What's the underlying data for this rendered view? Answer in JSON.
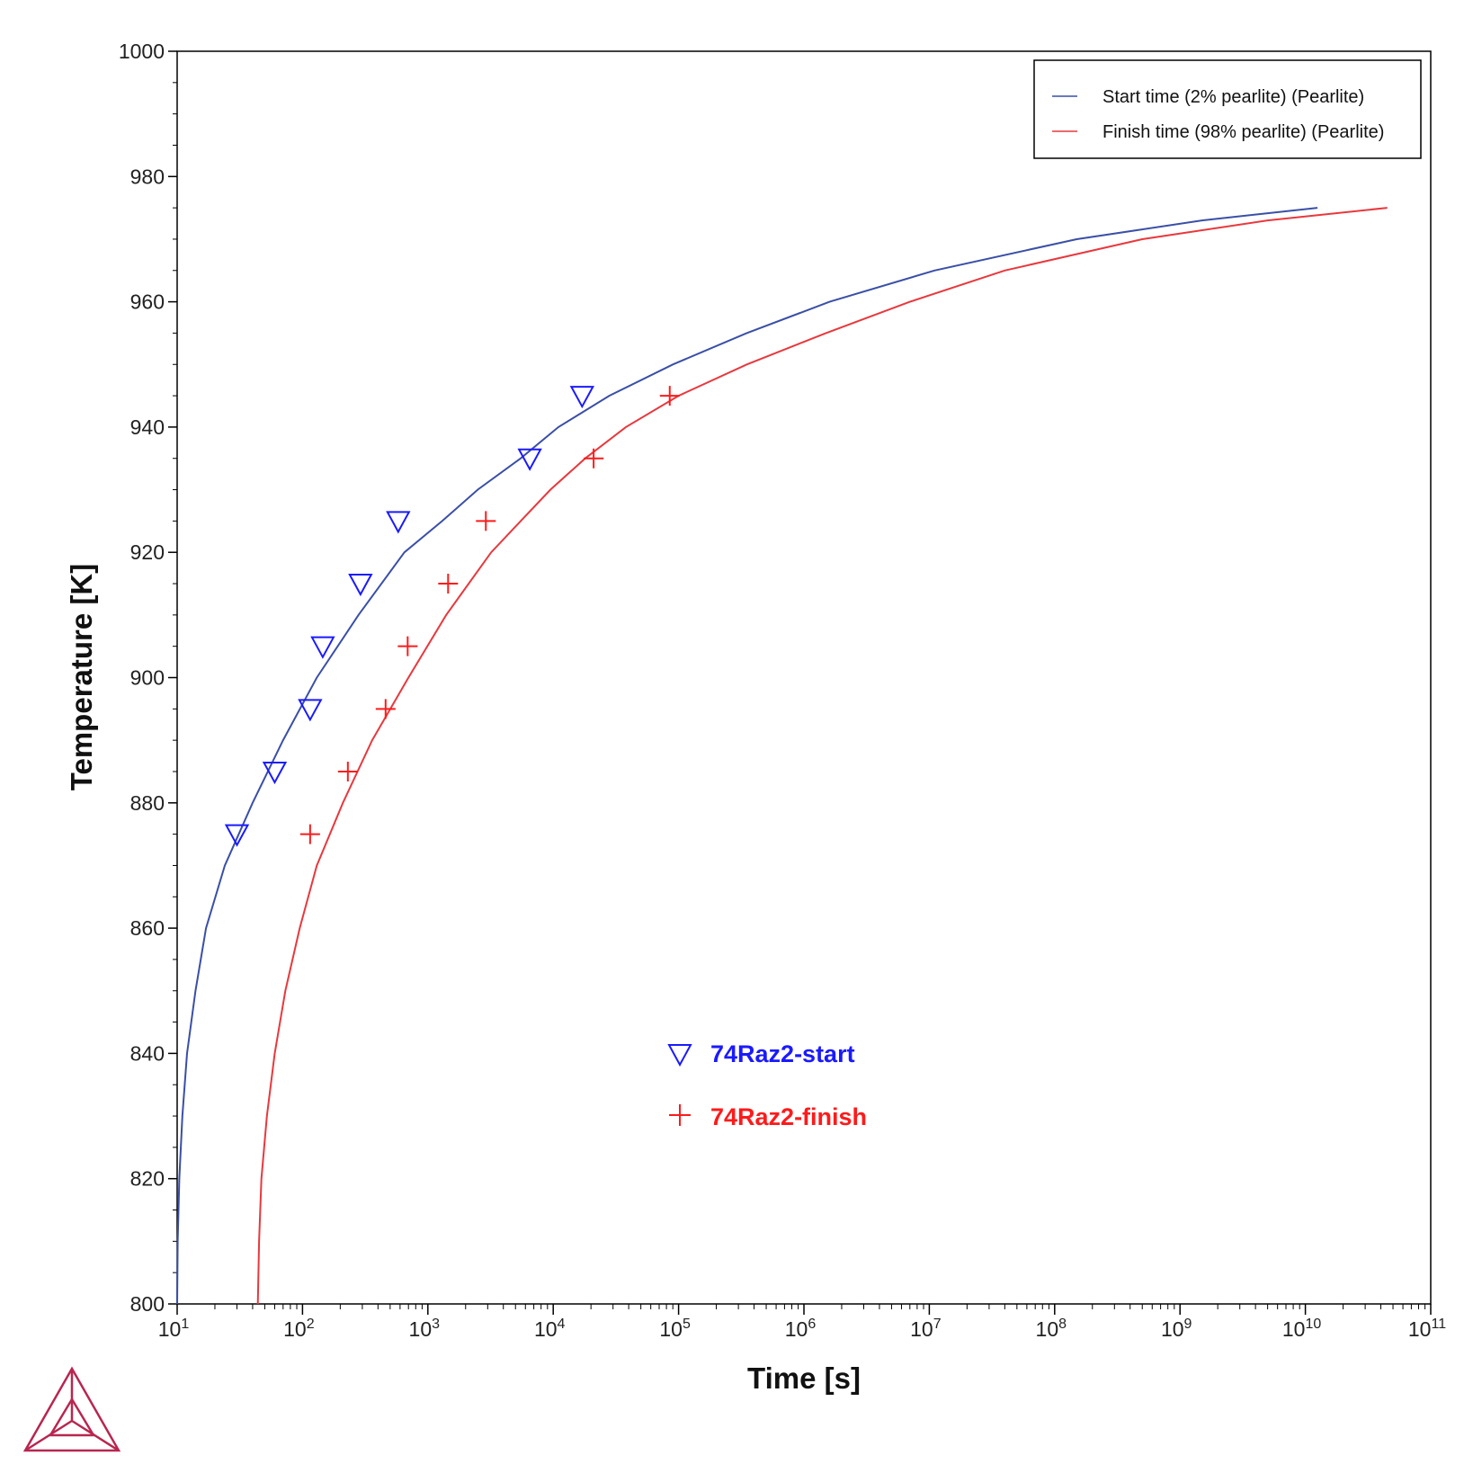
{
  "chart_data": {
    "type": "line",
    "xlabel": "Time [s]",
    "ylabel": "Temperature [K]",
    "x_scale": "log",
    "xlim": [
      10,
      100000000000
    ],
    "ylim": [
      800,
      1000
    ],
    "x_ticks": [
      {
        "value": 10,
        "base": "10",
        "exp": "1"
      },
      {
        "value": 100,
        "base": "10",
        "exp": "2"
      },
      {
        "value": 1000,
        "base": "10",
        "exp": "3"
      },
      {
        "value": 10000,
        "base": "10",
        "exp": "4"
      },
      {
        "value": 100000,
        "base": "10",
        "exp": "5"
      },
      {
        "value": 1000000,
        "base": "10",
        "exp": "6"
      },
      {
        "value": 10000000,
        "base": "10",
        "exp": "7"
      },
      {
        "value": 100000000,
        "base": "10",
        "exp": "8"
      },
      {
        "value": 1000000000,
        "base": "10",
        "exp": "9"
      },
      {
        "value": 10000000000,
        "base": "10",
        "exp": "10"
      },
      {
        "value": 100000000000,
        "base": "10",
        "exp": "11"
      }
    ],
    "y_ticks": [
      "800",
      "820",
      "840",
      "860",
      "880",
      "900",
      "920",
      "940",
      "960",
      "980",
      "1000"
    ],
    "grid": false,
    "legend_position": "top-right",
    "series": [
      {
        "name": "Start time (2% pearlite) (Pearlite)",
        "color": "#3a4fa6",
        "style": "line",
        "points": [
          [
            10.0,
            800
          ],
          [
            10.1,
            810
          ],
          [
            10.4,
            820
          ],
          [
            11,
            830
          ],
          [
            12,
            840
          ],
          [
            14,
            850
          ],
          [
            17,
            860
          ],
          [
            24,
            870
          ],
          [
            40,
            880
          ],
          [
            70,
            890
          ],
          [
            130,
            900
          ],
          [
            280,
            910
          ],
          [
            650,
            920
          ],
          [
            1300,
            925
          ],
          [
            2500,
            930
          ],
          [
            5500,
            935
          ],
          [
            11000,
            940
          ],
          [
            28000,
            945
          ],
          [
            90000,
            950
          ],
          [
            350000,
            955
          ],
          [
            1600000,
            960
          ],
          [
            11000000,
            965
          ],
          [
            150000000,
            970
          ],
          [
            1500000000,
            973
          ],
          [
            12500000000,
            975
          ]
        ]
      },
      {
        "name": "Finish time (98% pearlite) (Pearlite)",
        "color": "#e8383d",
        "style": "line",
        "points": [
          [
            44,
            800
          ],
          [
            45,
            810
          ],
          [
            47,
            820
          ],
          [
            52,
            830
          ],
          [
            60,
            840
          ],
          [
            73,
            850
          ],
          [
            95,
            860
          ],
          [
            130,
            870
          ],
          [
            210,
            880
          ],
          [
            360,
            890
          ],
          [
            700,
            900
          ],
          [
            1400,
            910
          ],
          [
            3200,
            920
          ],
          [
            5500,
            925
          ],
          [
            9500,
            930
          ],
          [
            18000,
            935
          ],
          [
            38000,
            940
          ],
          [
            100000,
            945
          ],
          [
            350000,
            950
          ],
          [
            1500000,
            955
          ],
          [
            7000000,
            960
          ],
          [
            40000000,
            965
          ],
          [
            500000000,
            970
          ],
          [
            5000000000,
            973
          ],
          [
            45000000000,
            975
          ]
        ]
      },
      {
        "name": "74Raz2-start",
        "color": "#1a1aff",
        "style": "triangle-down",
        "points": [
          [
            30,
            875
          ],
          [
            60,
            885
          ],
          [
            115,
            895
          ],
          [
            145,
            905
          ],
          [
            290,
            915
          ],
          [
            580,
            925
          ],
          [
            6500,
            935
          ],
          [
            17000,
            945
          ]
        ]
      },
      {
        "name": "74Raz2-finish",
        "color": "#ff1a1a",
        "style": "plus",
        "points": [
          [
            115,
            875
          ],
          [
            230,
            885
          ],
          [
            460,
            895
          ],
          [
            690,
            905
          ],
          [
            1450,
            915
          ],
          [
            2900,
            925
          ],
          [
            21000,
            935
          ],
          [
            85000,
            945
          ]
        ]
      }
    ]
  }
}
